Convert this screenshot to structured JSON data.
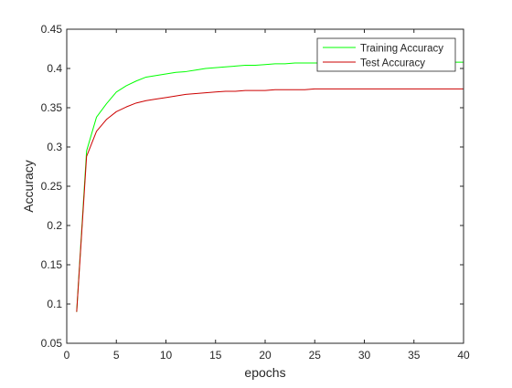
{
  "chart_data": {
    "type": "line",
    "title": "",
    "xlabel": "epochs",
    "ylabel": "Accuracy",
    "xlim": [
      0,
      40
    ],
    "ylim": [
      0.05,
      0.45
    ],
    "xticks": [
      0,
      5,
      10,
      15,
      20,
      25,
      30,
      35,
      40
    ],
    "yticks": [
      0.05,
      0.1,
      0.15,
      0.2,
      0.25,
      0.3,
      0.35,
      0.4,
      0.45
    ],
    "xtick_labels": [
      "0",
      "5",
      "10",
      "15",
      "20",
      "25",
      "30",
      "35",
      "40"
    ],
    "ytick_labels": [
      "0.05",
      "0.1",
      "0.15",
      "0.2",
      "0.25",
      "0.3",
      "0.35",
      "0.4",
      "0.45"
    ],
    "grid": false,
    "legend_position": "top-right",
    "x": [
      1,
      2,
      3,
      4,
      5,
      6,
      7,
      8,
      9,
      10,
      11,
      12,
      13,
      14,
      15,
      16,
      17,
      18,
      19,
      20,
      21,
      22,
      23,
      24,
      25,
      26,
      27,
      28,
      29,
      30,
      31,
      32,
      33,
      34,
      35,
      36,
      37,
      38,
      39,
      40
    ],
    "series": [
      {
        "name": "Training Accuracy",
        "color": "#00ff00",
        "values": [
          0.09,
          0.295,
          0.338,
          0.355,
          0.37,
          0.378,
          0.384,
          0.389,
          0.391,
          0.393,
          0.395,
          0.396,
          0.398,
          0.4,
          0.401,
          0.402,
          0.403,
          0.404,
          0.404,
          0.405,
          0.406,
          0.406,
          0.407,
          0.407,
          0.407,
          0.407,
          0.408,
          0.408,
          0.408,
          0.408,
          0.408,
          0.408,
          0.408,
          0.408,
          0.408,
          0.408,
          0.408,
          0.408,
          0.408,
          0.408
        ]
      },
      {
        "name": "Test Accuracy",
        "color": "#cc0000",
        "values": [
          0.09,
          0.288,
          0.32,
          0.335,
          0.345,
          0.351,
          0.356,
          0.359,
          0.361,
          0.363,
          0.365,
          0.367,
          0.368,
          0.369,
          0.37,
          0.371,
          0.371,
          0.372,
          0.372,
          0.372,
          0.373,
          0.373,
          0.373,
          0.373,
          0.374,
          0.374,
          0.374,
          0.374,
          0.374,
          0.374,
          0.374,
          0.374,
          0.374,
          0.374,
          0.374,
          0.374,
          0.374,
          0.374,
          0.374,
          0.374
        ]
      }
    ]
  }
}
